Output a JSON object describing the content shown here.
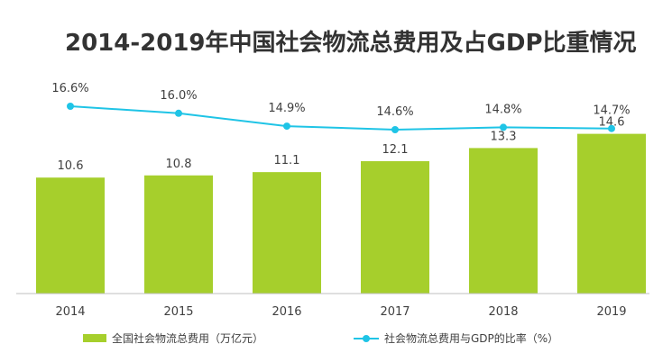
{
  "chart_data": {
    "type": "bar",
    "title": "2014-2019年中国社会物流总费用及占GDP比重情况",
    "categories": [
      "2014",
      "2015",
      "2016",
      "2017",
      "2018",
      "2019"
    ],
    "series": [
      {
        "name": "全国社会物流总费用（万亿元）",
        "type": "bar",
        "values": [
          10.6,
          10.8,
          11.1,
          12.1,
          13.3,
          14.6
        ],
        "labels": [
          "10.6",
          "10.8",
          "11.1",
          "12.1",
          "13.3",
          "14.6"
        ],
        "color": "#a6cf2c"
      },
      {
        "name": "社会物流总费用与GDP的比率（%）",
        "type": "line",
        "values": [
          16.6,
          16.0,
          14.9,
          14.6,
          14.8,
          14.7
        ],
        "labels": [
          "16.6%",
          "16.0%",
          "14.9%",
          "14.6%",
          "14.8%",
          "14.7%"
        ],
        "color": "#1fc4e6"
      }
    ],
    "bar_ylim": [
      0,
      20
    ],
    "line_ylim": [
      14.6,
      16.6
    ],
    "legend_position": "bottom"
  }
}
